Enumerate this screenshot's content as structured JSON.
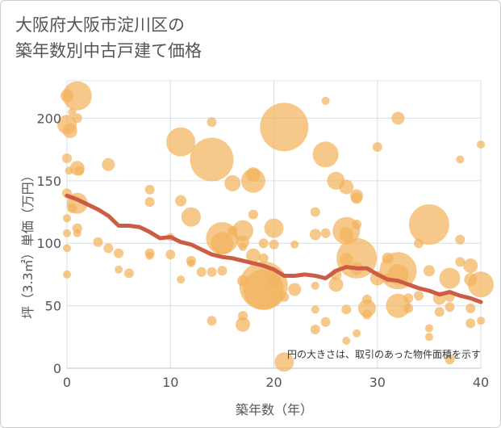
{
  "title_line1": "大阪府大阪市淀川区の",
  "title_line2": "築年数別中古戸建て価格",
  "note": "円の大きさは、取引のあった物件面積を示す",
  "chart_data": {
    "type": "scatter",
    "xlabel": "築年数（年）",
    "ylabel": "坪（3.3㎡）単価（万円）",
    "xlim": [
      0,
      40
    ],
    "ylim": [
      0,
      230
    ],
    "xticks": [
      0,
      10,
      20,
      30,
      40
    ],
    "yticks": [
      0,
      50,
      100,
      150,
      200
    ],
    "grid": true,
    "bubble_color": "#f2b35c",
    "line_color": "#cd5c45",
    "points": [
      [
        0,
        218,
        8
      ],
      [
        0.5,
        205,
        5
      ],
      [
        1,
        218,
        18
      ],
      [
        0,
        195,
        12
      ],
      [
        0.3,
        190,
        9
      ],
      [
        1,
        200,
        6
      ],
      [
        0,
        168,
        6
      ],
      [
        0.2,
        158,
        5
      ],
      [
        1,
        160,
        9
      ],
      [
        1.2,
        158,
        6
      ],
      [
        0,
        140,
        6
      ],
      [
        0.5,
        128,
        6
      ],
      [
        1,
        132,
        13
      ],
      [
        0,
        120,
        5
      ],
      [
        1,
        112,
        6
      ],
      [
        0,
        108,
        5
      ],
      [
        1,
        108,
        5
      ],
      [
        0,
        96,
        5
      ],
      [
        0,
        75,
        5
      ],
      [
        3,
        101,
        6
      ],
      [
        4,
        163,
        8
      ],
      [
        4,
        96,
        6
      ],
      [
        5,
        92,
        6
      ],
      [
        5,
        79,
        5
      ],
      [
        6,
        76,
        6
      ],
      [
        8,
        143,
        6
      ],
      [
        8,
        133,
        6
      ],
      [
        8,
        92,
        6
      ],
      [
        8,
        90,
        5
      ],
      [
        10,
        105,
        5
      ],
      [
        10,
        91,
        6
      ],
      [
        11,
        181,
        18
      ],
      [
        11,
        134,
        7
      ],
      [
        11,
        71,
        5
      ],
      [
        12,
        121,
        12
      ],
      [
        12,
        86,
        6
      ],
      [
        12,
        84,
        5
      ],
      [
        13,
        77,
        6
      ],
      [
        14,
        197,
        6
      ],
      [
        14,
        167,
        27
      ],
      [
        14,
        77,
        6
      ],
      [
        14,
        38,
        6
      ],
      [
        15,
        104,
        20
      ],
      [
        15,
        100,
        14
      ],
      [
        15,
        78,
        6
      ],
      [
        16,
        148,
        10
      ],
      [
        16,
        110,
        6
      ],
      [
        17,
        110,
        13
      ],
      [
        17,
        101,
        8
      ],
      [
        17,
        97,
        5
      ],
      [
        17,
        70,
        7
      ],
      [
        17,
        42,
        6
      ],
      [
        17,
        35,
        9
      ],
      [
        18,
        155,
        9
      ],
      [
        18,
        150,
        15
      ],
      [
        18,
        123,
        6
      ],
      [
        18,
        90,
        9
      ],
      [
        19,
        66,
        30
      ],
      [
        19,
        63,
        25
      ],
      [
        19,
        100,
        6
      ],
      [
        19,
        88,
        6
      ],
      [
        20,
        112,
        12
      ],
      [
        20,
        99,
        6
      ],
      [
        20,
        70,
        8
      ],
      [
        21,
        193,
        30
      ],
      [
        21,
        57,
        6
      ],
      [
        22,
        99,
        5
      ],
      [
        22,
        63,
        8
      ],
      [
        24,
        125,
        6
      ],
      [
        24,
        107,
        7
      ],
      [
        24,
        66,
        5
      ],
      [
        24,
        47,
        5
      ],
      [
        24,
        31,
        6
      ],
      [
        25,
        214,
        5
      ],
      [
        25,
        171,
        16
      ],
      [
        25,
        108,
        6
      ],
      [
        25,
        37,
        6
      ],
      [
        26,
        150,
        11
      ],
      [
        26,
        75,
        7
      ],
      [
        26,
        67,
        9
      ],
      [
        27,
        145,
        9
      ],
      [
        27,
        110,
        17
      ],
      [
        27,
        107,
        9
      ],
      [
        27,
        87,
        8
      ],
      [
        27,
        47,
        6
      ],
      [
        27,
        22,
        5
      ],
      [
        28,
        138,
        8
      ],
      [
        28,
        136,
        7
      ],
      [
        28,
        115,
        6
      ],
      [
        28,
        88,
        25
      ],
      [
        28,
        80,
        8
      ],
      [
        28,
        28,
        5
      ],
      [
        29,
        55,
        6
      ],
      [
        29,
        48,
        11
      ],
      [
        29,
        43,
        6
      ],
      [
        30,
        177,
        6
      ],
      [
        30,
        72,
        9
      ],
      [
        31,
        88,
        7
      ],
      [
        31,
        72,
        6
      ],
      [
        32,
        200,
        8
      ],
      [
        32,
        78,
        23
      ],
      [
        32,
        75,
        13
      ],
      [
        32,
        50,
        15
      ],
      [
        33,
        56,
        6
      ],
      [
        33,
        48,
        6
      ],
      [
        34,
        100,
        6
      ],
      [
        34,
        58,
        6
      ],
      [
        35,
        115,
        25
      ],
      [
        35,
        78,
        7
      ],
      [
        35,
        32,
        5
      ],
      [
        36,
        56,
        8
      ],
      [
        36,
        45,
        6
      ],
      [
        37,
        72,
        13
      ],
      [
        37,
        57,
        6
      ],
      [
        37,
        49,
        6
      ],
      [
        37,
        7,
        6
      ],
      [
        38,
        167,
        5
      ],
      [
        38,
        103,
        6
      ],
      [
        38,
        85,
        6
      ],
      [
        39,
        82,
        9
      ],
      [
        39,
        71,
        8
      ],
      [
        39,
        48,
        6
      ],
      [
        39,
        36,
        6
      ],
      [
        40,
        179,
        5
      ],
      [
        40,
        67,
        16
      ],
      [
        40,
        38,
        5
      ],
      [
        35,
        25,
        5
      ],
      [
        21,
        5,
        12
      ]
    ],
    "trend_line": [
      [
        0,
        138
      ],
      [
        1,
        135
      ],
      [
        2,
        131
      ],
      [
        3,
        127
      ],
      [
        4,
        122
      ],
      [
        5,
        114
      ],
      [
        6,
        114
      ],
      [
        7,
        113
      ],
      [
        8,
        109
      ],
      [
        9,
        104
      ],
      [
        10,
        105
      ],
      [
        11,
        101
      ],
      [
        12,
        99
      ],
      [
        13,
        95
      ],
      [
        14,
        91
      ],
      [
        15,
        89
      ],
      [
        16,
        88
      ],
      [
        17,
        86
      ],
      [
        18,
        84
      ],
      [
        19,
        82
      ],
      [
        20,
        79
      ],
      [
        21,
        74
      ],
      [
        22,
        74
      ],
      [
        23,
        75
      ],
      [
        24,
        74
      ],
      [
        25,
        72
      ],
      [
        26,
        78
      ],
      [
        27,
        81
      ],
      [
        28,
        80
      ],
      [
        29,
        80
      ],
      [
        30,
        75
      ],
      [
        31,
        71
      ],
      [
        32,
        70
      ],
      [
        33,
        67
      ],
      [
        34,
        64
      ],
      [
        35,
        62
      ],
      [
        36,
        59
      ],
      [
        37,
        61
      ],
      [
        38,
        58
      ],
      [
        39,
        56
      ],
      [
        40,
        53
      ]
    ]
  }
}
